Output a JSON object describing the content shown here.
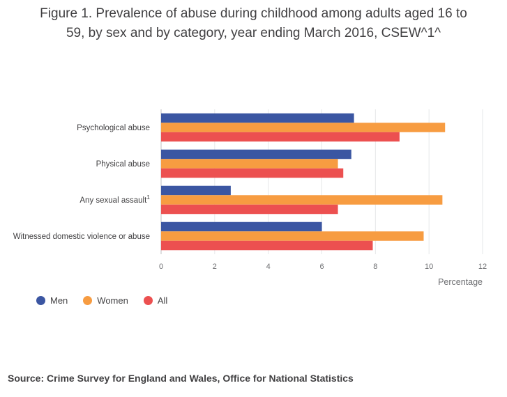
{
  "title_lines": [
    "Figure 1. Prevalence of abuse during childhood among adults aged 16 to",
    "59, by sex and by category, year ending March 2016, CSEW^1^"
  ],
  "source": "Source: Crime Survey for England and Wales, Office for National Statistics",
  "chart_data": {
    "type": "bar",
    "orientation": "horizontal",
    "title": "Figure 1. Prevalence of abuse during childhood among adults aged 16 to 59, by sex and by category, year ending March 2016, CSEW^1^",
    "categories": [
      {
        "label": "Psychological abuse",
        "sup": ""
      },
      {
        "label": "Physical abuse",
        "sup": ""
      },
      {
        "label": "Any sexual assault",
        "sup": "1"
      },
      {
        "label": "Witnessed domestic violence or abuse",
        "sup": ""
      }
    ],
    "series": [
      {
        "name": "Men",
        "color": "#3b56a2",
        "values": [
          7.2,
          7.1,
          2.6,
          6.0
        ]
      },
      {
        "name": "Women",
        "color": "#f79c41",
        "values": [
          10.6,
          6.6,
          10.5,
          9.8
        ]
      },
      {
        "name": "All",
        "color": "#ec5050",
        "values": [
          8.9,
          6.8,
          6.6,
          7.9
        ]
      }
    ],
    "xlabel": "Percentage",
    "ylabel": "",
    "xlim": [
      0,
      12
    ],
    "xticks": [
      "0",
      "2",
      "4",
      "6",
      "8",
      "10",
      "12"
    ],
    "grid": "vertical",
    "legend_position": "bottom-left"
  }
}
